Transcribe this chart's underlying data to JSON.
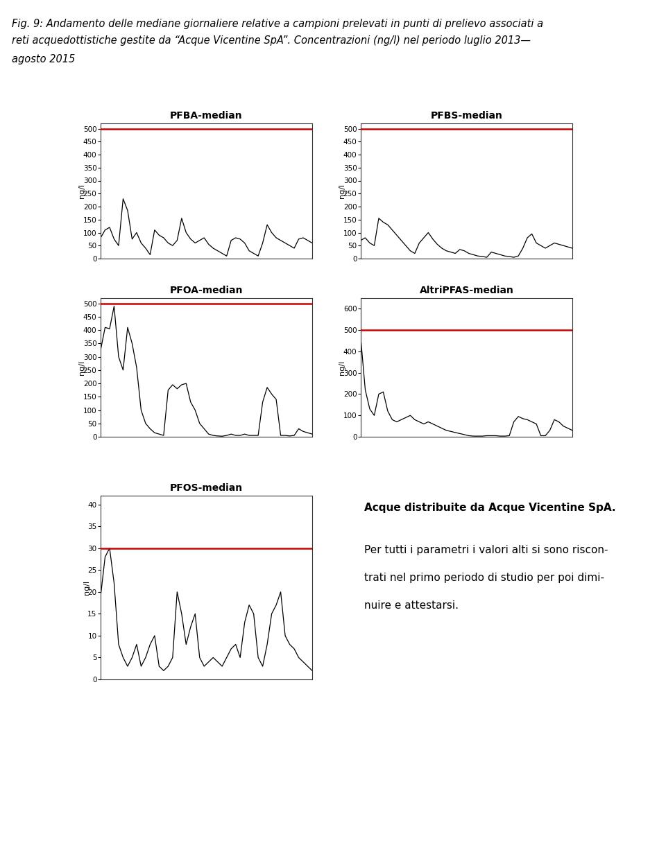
{
  "title_lines": [
    "Fig. 9: Andamento delle mediane giornaliere relative a campioni prelevati in punti di prelievo associati a",
    "reti acquedottistiche gestite da “Acque Vicentine SpA”. Concentrazioni (ng/l) nel periodo luglio 2013—",
    "agosto 2015"
  ],
  "plots": [
    {
      "title": "PFBA-median",
      "ylabel": "ng/l",
      "ylim": [
        0,
        520
      ],
      "yticks": [
        0,
        50,
        100,
        150,
        200,
        250,
        300,
        350,
        400,
        450,
        500
      ],
      "hline": 500,
      "hline_color": "#cc0000",
      "data": [
        80,
        110,
        120,
        75,
        50,
        230,
        185,
        75,
        100,
        60,
        40,
        15,
        110,
        90,
        80,
        60,
        50,
        70,
        155,
        100,
        75,
        60,
        70,
        80,
        55,
        40,
        30,
        20,
        10,
        70,
        80,
        75,
        60,
        30,
        20,
        10,
        60,
        130,
        100,
        80,
        70,
        60,
        50,
        40,
        75,
        80,
        70,
        60
      ]
    },
    {
      "title": "PFBS-median",
      "ylabel": "ng/l",
      "ylim": [
        0,
        520
      ],
      "yticks": [
        0,
        50,
        100,
        150,
        200,
        250,
        300,
        350,
        400,
        450,
        500
      ],
      "hline": 500,
      "hline_color": "#cc0000",
      "data": [
        70,
        80,
        60,
        50,
        155,
        140,
        130,
        110,
        90,
        70,
        50,
        30,
        20,
        60,
        80,
        100,
        75,
        55,
        40,
        30,
        25,
        20,
        35,
        30,
        20,
        15,
        10,
        8,
        5,
        25,
        20,
        15,
        10,
        8,
        5,
        10,
        40,
        80,
        95,
        60,
        50,
        40,
        50,
        60,
        55,
        50,
        45,
        40
      ]
    },
    {
      "title": "PFOA-median",
      "ylabel": "ng/l",
      "ylim": [
        0,
        520
      ],
      "yticks": [
        0,
        50,
        100,
        150,
        200,
        250,
        300,
        350,
        400,
        450,
        500
      ],
      "hline": 500,
      "hline_color": "#cc0000",
      "data": [
        325,
        410,
        405,
        490,
        300,
        250,
        410,
        350,
        260,
        100,
        50,
        30,
        15,
        10,
        5,
        175,
        195,
        180,
        195,
        200,
        130,
        100,
        50,
        30,
        10,
        5,
        3,
        2,
        5,
        10,
        5,
        5,
        10,
        5,
        5,
        5,
        130,
        185,
        160,
        140,
        5,
        5,
        3,
        5,
        30,
        20,
        15,
        10
      ]
    },
    {
      "title": "AltriPFAS-median",
      "ylabel": "ng/l",
      "ylim": [
        0,
        650
      ],
      "yticks": [
        0,
        100,
        200,
        300,
        400,
        500,
        600
      ],
      "hline": 500,
      "hline_color": "#cc0000",
      "data": [
        460,
        220,
        130,
        100,
        200,
        210,
        120,
        80,
        70,
        80,
        90,
        100,
        80,
        70,
        60,
        70,
        60,
        50,
        40,
        30,
        25,
        20,
        15,
        10,
        5,
        3,
        3,
        3,
        5,
        5,
        5,
        3,
        3,
        5,
        70,
        95,
        85,
        80,
        70,
        60,
        5,
        5,
        30,
        80,
        70,
        50,
        40,
        30
      ]
    },
    {
      "title": "PFOS-median",
      "ylabel": "ng/l",
      "ylim": [
        0,
        42
      ],
      "yticks": [
        0,
        5,
        10,
        15,
        20,
        25,
        30,
        35,
        40
      ],
      "hline": 30,
      "hline_color": "#cc0000",
      "data": [
        19,
        28,
        30,
        22,
        8,
        5,
        3,
        5,
        8,
        3,
        5,
        8,
        10,
        3,
        2,
        3,
        5,
        20,
        15,
        8,
        12,
        15,
        5,
        3,
        4,
        5,
        4,
        3,
        5,
        7,
        8,
        5,
        13,
        17,
        15,
        5,
        3,
        8,
        15,
        17,
        20,
        10,
        8,
        7,
        5,
        4,
        3,
        2
      ]
    }
  ],
  "text_title": "Acque distribuite da Acque Vicentine SpA.",
  "text_body_line1": "Per tutti i parametri i valori alti si sono riscon-",
  "text_body_line2": "trati nel primo periodo di studio per poi dimi-",
  "text_body_line3": "nuire e attestarsi.",
  "bg_color": "#ffffff",
  "line_color": "#000000",
  "title_fontsize": 10.5,
  "plot_title_fontsize": 10,
  "ylabel_fontsize": 8,
  "tick_fontsize": 7.5,
  "text_title_fontsize": 11,
  "text_body_fontsize": 11
}
